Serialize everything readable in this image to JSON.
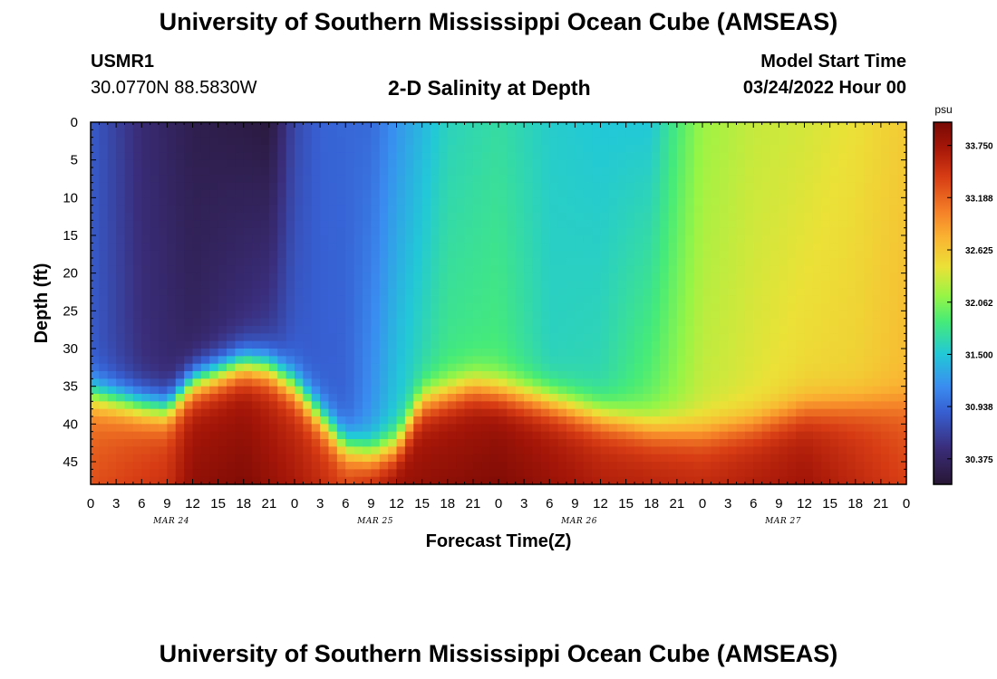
{
  "header": {
    "title": "University of Southern Mississippi Ocean Cube (AMSEAS)",
    "station_id": "USMR1",
    "station_coords": "30.0770N  88.5830W",
    "plot_title": "2-D Salinity at Depth",
    "start_label": "Model Start Time",
    "start_value": "03/24/2022 Hour 00"
  },
  "footer": {
    "title": "University of Southern Mississippi Ocean Cube (AMSEAS)"
  },
  "chart_data": {
    "type": "heatmap",
    "title": "2-D Salinity at Depth",
    "xlabel": "Forecast Time(Z)",
    "ylabel": "Depth (ft)",
    "colorbar_unit": "psu",
    "colorbar_ticks": [
      "33.750",
      "33.188",
      "32.625",
      "32.062",
      "31.500",
      "30.938",
      "30.375"
    ],
    "colorbar_range": [
      30.1,
      34.0
    ],
    "x_tick_labels": [
      "0",
      "3",
      "6",
      "9",
      "12",
      "15",
      "18",
      "21",
      "0",
      "3",
      "6",
      "9",
      "12",
      "15",
      "18",
      "21",
      "0",
      "3",
      "6",
      "9",
      "12",
      "15",
      "18",
      "21",
      "0",
      "3",
      "6",
      "9",
      "12",
      "15",
      "18",
      "21",
      "0"
    ],
    "day_labels": [
      "MAR 24",
      "MAR 25",
      "MAR 26",
      "MAR 27"
    ],
    "xlim_hours": [
      0,
      96
    ],
    "y_ticks": [
      0,
      5,
      10,
      15,
      20,
      25,
      30,
      35,
      40,
      45
    ],
    "ylim": [
      0,
      48
    ],
    "grid": false,
    "legend": "colorbar-right",
    "surface_salinity_by_hour": [
      [
        0,
        30.85
      ],
      [
        6,
        30.45
      ],
      [
        12,
        30.25
      ],
      [
        18,
        30.2
      ],
      [
        21,
        30.15
      ],
      [
        24,
        30.7
      ],
      [
        27,
        30.9
      ],
      [
        33,
        30.95
      ],
      [
        36,
        31.2
      ],
      [
        42,
        31.6
      ],
      [
        48,
        31.7
      ],
      [
        54,
        31.55
      ],
      [
        60,
        31.5
      ],
      [
        66,
        31.5
      ],
      [
        69,
        31.85
      ],
      [
        72,
        32.15
      ],
      [
        78,
        32.3
      ],
      [
        84,
        32.35
      ],
      [
        90,
        32.45
      ],
      [
        96,
        32.6
      ]
    ],
    "mid_salinity_by_hour": [
      [
        0,
        30.85
      ],
      [
        6,
        30.5
      ],
      [
        12,
        30.35
      ],
      [
        18,
        30.5
      ],
      [
        21,
        30.6
      ],
      [
        24,
        30.85
      ],
      [
        30,
        30.9
      ],
      [
        36,
        31.5
      ],
      [
        42,
        31.8
      ],
      [
        48,
        31.85
      ],
      [
        54,
        31.6
      ],
      [
        60,
        31.65
      ],
      [
        66,
        31.95
      ],
      [
        72,
        32.3
      ],
      [
        78,
        32.4
      ],
      [
        84,
        32.5
      ],
      [
        90,
        32.55
      ],
      [
        96,
        32.7
      ]
    ],
    "halocline_depth_by_hour": [
      [
        0,
        36
      ],
      [
        6,
        37.5
      ],
      [
        9,
        38
      ],
      [
        12,
        34.5
      ],
      [
        18,
        32
      ],
      [
        21,
        32.5
      ],
      [
        24,
        35
      ],
      [
        27,
        39
      ],
      [
        30,
        43
      ],
      [
        33,
        44
      ],
      [
        36,
        43
      ],
      [
        39,
        37
      ],
      [
        45,
        35
      ],
      [
        48,
        35.5
      ],
      [
        54,
        37
      ],
      [
        60,
        39
      ],
      [
        66,
        40.5
      ],
      [
        72,
        41
      ],
      [
        78,
        40
      ],
      [
        84,
        38
      ],
      [
        90,
        37.5
      ],
      [
        96,
        37
      ]
    ],
    "bottom_salinity_by_hour": [
      [
        0,
        33.3
      ],
      [
        9,
        33.5
      ],
      [
        12,
        33.85
      ],
      [
        18,
        33.95
      ],
      [
        24,
        33.7
      ],
      [
        30,
        33.4
      ],
      [
        36,
        33.8
      ],
      [
        48,
        33.95
      ],
      [
        60,
        33.65
      ],
      [
        72,
        33.55
      ],
      [
        84,
        33.75
      ],
      [
        96,
        33.4
      ]
    ]
  }
}
